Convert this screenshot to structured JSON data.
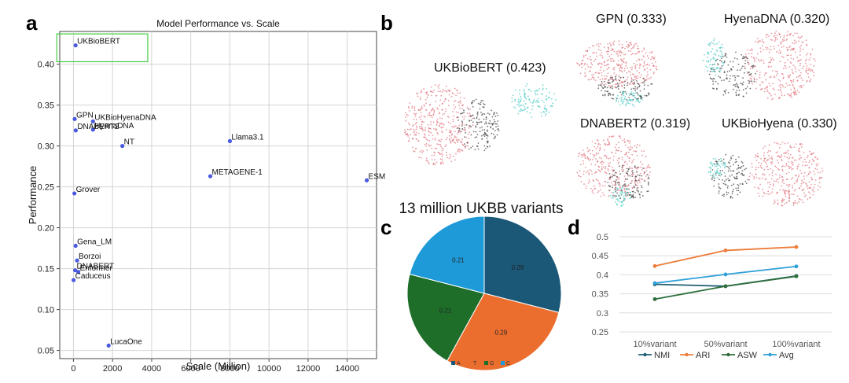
{
  "panels": {
    "a": "a",
    "b": "b",
    "c": "c",
    "d": "d"
  },
  "colors": {
    "scatter_point": "#4a5ae0",
    "highlight_box": "#44cc44",
    "pie_A": "#1b5878",
    "pie_T": "#ec6e2e",
    "pie_G": "#1e6e2a",
    "pie_C": "#1e9ad8",
    "NMI": "#1f5f74",
    "ARI": "#ec7d3a",
    "ASW": "#2e6e3a",
    "Avg": "#2ea0d8",
    "umap_pink": "#e0707a",
    "umap_teal": "#40c8c0",
    "umap_dark": "#3a3a3a"
  },
  "umap_titles": {
    "ukbiobert": "UKBioBERT (0.423)",
    "gpn": "GPN (0.333)",
    "hyenadna": "HyenaDNA (0.320)",
    "dnabert2": "DNABERT2 (0.319)",
    "ukbiohyena": "UKBioHyena (0.330)"
  },
  "chart_data": [
    {
      "type": "scatter",
      "title": "Model Performance vs. Scale",
      "xlabel": "Scale (Million)",
      "ylabel": "Performance",
      "xlim": [
        -700,
        15500
      ],
      "ylim": [
        0.04,
        0.44
      ],
      "xticks": [
        0,
        2000,
        4000,
        6000,
        8000,
        10000,
        12000,
        14000
      ],
      "yticks": [
        0.05,
        0.1,
        0.15,
        0.2,
        0.25,
        0.3,
        0.35,
        0.4
      ],
      "grid": true,
      "points": [
        {
          "label": "UKBioBERT",
          "x": 110,
          "y": 0.423
        },
        {
          "label": "GPN",
          "x": 65,
          "y": 0.333
        },
        {
          "label": "UKBioHyenaDNA",
          "x": 1000,
          "y": 0.33
        },
        {
          "label": "HyenaDNA",
          "x": 1000,
          "y": 0.32
        },
        {
          "label": "DNABERT2",
          "x": 117,
          "y": 0.319
        },
        {
          "label": "NT",
          "x": 2500,
          "y": 0.3
        },
        {
          "label": "Llama3.1",
          "x": 8000,
          "y": 0.306
        },
        {
          "label": "METAGENE-1",
          "x": 7000,
          "y": 0.263
        },
        {
          "label": "ESM",
          "x": 15000,
          "y": 0.258
        },
        {
          "label": "Grover",
          "x": 50,
          "y": 0.242
        },
        {
          "label": "Gena_LM",
          "x": 110,
          "y": 0.178
        },
        {
          "label": "Borzoi",
          "x": 186,
          "y": 0.16
        },
        {
          "label": "DNABERT",
          "x": 86,
          "y": 0.148
        },
        {
          "label": "Enformer",
          "x": 250,
          "y": 0.146
        },
        {
          "label": "Caduceus",
          "x": 8,
          "y": 0.136
        },
        {
          "label": "LucaOne",
          "x": 1800,
          "y": 0.056
        }
      ],
      "highlight": {
        "label": "UKBioBERT",
        "x_range": [
          -850,
          3800
        ],
        "y_range": [
          0.403,
          0.437
        ]
      }
    },
    {
      "type": "pie",
      "title": "13 million UKBB variants",
      "labels": [
        "A",
        "T",
        "G",
        "C"
      ],
      "values": [
        0.29,
        0.29,
        0.21,
        0.21
      ],
      "value_labels": [
        "0.29",
        "0.29",
        "0.21",
        "0.21"
      ],
      "legend": "bottom"
    },
    {
      "type": "line",
      "categories": [
        "10%variant",
        "50%variant",
        "100%variant"
      ],
      "ylim": [
        0.25,
        0.5
      ],
      "yticks": [
        "0.5",
        "0.45",
        "0.4",
        "0.35",
        "0.3",
        "0.25"
      ],
      "grid": true,
      "legend": "bottom",
      "series": [
        {
          "name": "NMI",
          "values": [
            0.375,
            0.37,
            0.397
          ]
        },
        {
          "name": "ARI",
          "values": [
            0.423,
            0.464,
            0.473
          ]
        },
        {
          "name": "ASW",
          "values": [
            0.336,
            0.37,
            0.396
          ]
        },
        {
          "name": "Avg",
          "values": [
            0.378,
            0.401,
            0.422
          ]
        }
      ]
    }
  ]
}
